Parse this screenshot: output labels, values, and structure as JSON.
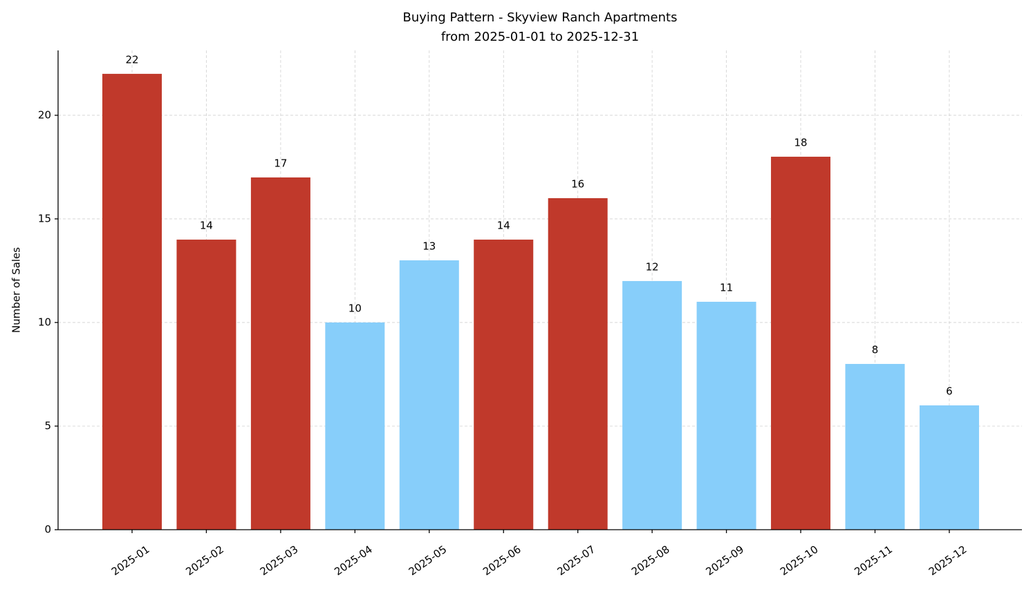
{
  "chart_data": {
    "type": "bar",
    "title": "Buying Pattern - Skyview Ranch Apartments",
    "subtitle": "from 2025-01-01 to 2025-12-31",
    "y_label": "Number of Sales",
    "categories": [
      "2025-01",
      "2025-02",
      "2025-03",
      "2025-04",
      "2025-05",
      "2025-06",
      "2025-07",
      "2025-08",
      "2025-09",
      "2025-10",
      "2025-11",
      "2025-12"
    ],
    "values": [
      22,
      14,
      17,
      10,
      13,
      14,
      16,
      12,
      11,
      18,
      8,
      6
    ],
    "colors": [
      "#c0392b",
      "#c0392b",
      "#c0392b",
      "#87cefa",
      "#87cefa",
      "#c0392b",
      "#c0392b",
      "#87cefa",
      "#87cefa",
      "#c0392b",
      "#87cefa",
      "#87cefa"
    ],
    "ylim": [
      0,
      23.13
    ],
    "yticks": [
      0,
      5,
      10,
      15,
      20
    ],
    "grid": true
  }
}
